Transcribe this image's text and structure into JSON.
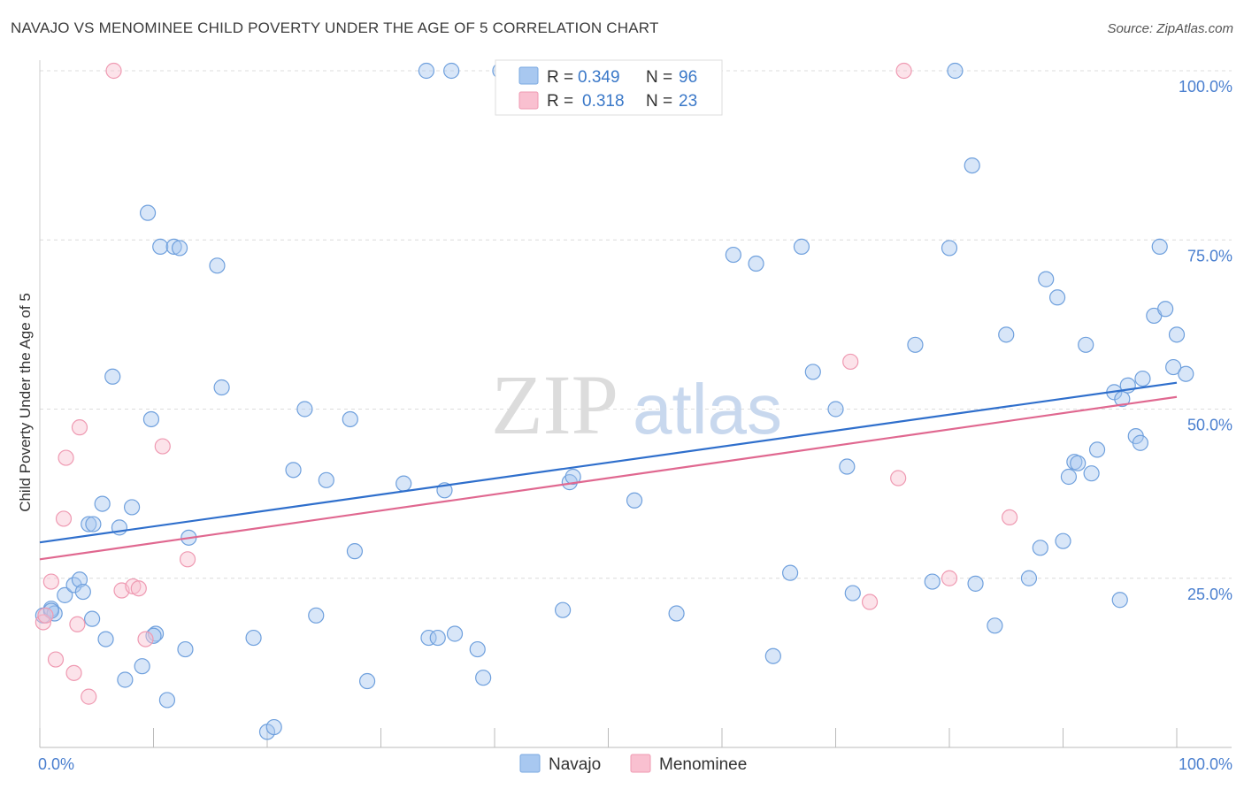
{
  "title": "NAVAJO VS MENOMINEE CHILD POVERTY UNDER THE AGE OF 5 CORRELATION CHART",
  "source": "Source: ZipAtlas.com",
  "watermark": {
    "zip": "ZIP",
    "atlas": "atlas"
  },
  "legend": {
    "rows": [
      {
        "r_label": "R =",
        "r_value": "0.349",
        "n_label": "N =",
        "n_value": "96",
        "color": "#a8c8f0",
        "stroke": "#7aa8e0"
      },
      {
        "r_label": "R =",
        "r_value": "0.318",
        "n_label": "N =",
        "n_value": "23",
        "color": "#f9c0d0",
        "stroke": "#ef9ab2"
      }
    ]
  },
  "bottom_legend": [
    "Navajo",
    "Menominee"
  ],
  "chart_data": {
    "type": "scatter",
    "xlabel": "",
    "ylabel": "Child Poverty Under the Age of 5",
    "xlim": [
      0,
      100
    ],
    "ylim": [
      0,
      100
    ],
    "x_tick_labels": [
      "0.0%",
      "100.0%"
    ],
    "y_tick_labels": [
      "25.0%",
      "50.0%",
      "75.0%",
      "100.0%"
    ],
    "y_ticks": [
      25,
      50,
      75,
      100
    ],
    "series": [
      {
        "name": "Navajo",
        "color": "#6fa0dd",
        "fill": "rgba(168,200,240,0.45)",
        "trend": [
          [
            0,
            30.3
          ],
          [
            100,
            53.9
          ]
        ],
        "trend_color": "#2f6fcc",
        "points": [
          [
            0.3,
            19.5
          ],
          [
            1.0,
            20.5
          ],
          [
            1.3,
            19.8
          ],
          [
            2.2,
            22.5
          ],
          [
            3.0,
            24.0
          ],
          [
            3.5,
            24.8
          ],
          [
            3.8,
            23.0
          ],
          [
            4.3,
            33.0
          ],
          [
            4.6,
            19.0
          ],
          [
            5.5,
            36.0
          ],
          [
            5.8,
            16.0
          ],
          [
            6.4,
            54.8
          ],
          [
            7.0,
            32.5
          ],
          [
            7.5,
            10.0
          ],
          [
            8.1,
            35.5
          ],
          [
            9.0,
            12.0
          ],
          [
            9.5,
            79.0
          ],
          [
            9.8,
            48.5
          ],
          [
            10.2,
            16.8
          ],
          [
            10.6,
            74.0
          ],
          [
            11.2,
            7.0
          ],
          [
            11.8,
            74.0
          ],
          [
            12.3,
            73.8
          ],
          [
            12.8,
            14.5
          ],
          [
            13.1,
            31.0
          ],
          [
            15.6,
            71.2
          ],
          [
            16.0,
            53.2
          ],
          [
            18.8,
            16.2
          ],
          [
            20.0,
            2.3
          ],
          [
            20.6,
            3.0
          ],
          [
            22.3,
            41.0
          ],
          [
            23.3,
            50.0
          ],
          [
            24.3,
            19.5
          ],
          [
            25.2,
            39.5
          ],
          [
            27.3,
            48.5
          ],
          [
            27.7,
            29.0
          ],
          [
            28.8,
            9.8
          ],
          [
            32.0,
            39.0
          ],
          [
            34.0,
            100.0
          ],
          [
            34.2,
            16.2
          ],
          [
            35.0,
            16.2
          ],
          [
            35.6,
            38.0
          ],
          [
            36.2,
            100.0
          ],
          [
            36.5,
            16.8
          ],
          [
            38.5,
            14.5
          ],
          [
            39.0,
            10.3
          ],
          [
            40.5,
            100.0
          ],
          [
            46.0,
            20.3
          ],
          [
            46.6,
            39.2
          ],
          [
            46.9,
            40.0
          ],
          [
            52.3,
            36.5
          ],
          [
            56.0,
            19.8
          ],
          [
            61.0,
            72.8
          ],
          [
            63.0,
            71.5
          ],
          [
            64.5,
            13.5
          ],
          [
            66.0,
            25.8
          ],
          [
            67.0,
            74.0
          ],
          [
            68.0,
            55.5
          ],
          [
            70.0,
            50.0
          ],
          [
            71.0,
            41.5
          ],
          [
            71.5,
            22.8
          ],
          [
            77.0,
            59.5
          ],
          [
            78.5,
            24.5
          ],
          [
            80.0,
            73.8
          ],
          [
            80.5,
            100.0
          ],
          [
            82.0,
            86.0
          ],
          [
            82.3,
            24.2
          ],
          [
            84.0,
            18.0
          ],
          [
            85.0,
            61.0
          ],
          [
            87.0,
            25.0
          ],
          [
            88.0,
            29.5
          ],
          [
            88.5,
            69.2
          ],
          [
            89.5,
            66.5
          ],
          [
            90.0,
            30.5
          ],
          [
            90.5,
            40.0
          ],
          [
            91.0,
            42.2
          ],
          [
            91.3,
            42.0
          ],
          [
            92.0,
            59.5
          ],
          [
            92.5,
            40.5
          ],
          [
            93.0,
            44.0
          ],
          [
            94.5,
            52.5
          ],
          [
            95.0,
            21.8
          ],
          [
            95.2,
            51.5
          ],
          [
            95.7,
            53.5
          ],
          [
            96.4,
            46.0
          ],
          [
            96.8,
            45.0
          ],
          [
            97.0,
            54.5
          ],
          [
            98.0,
            63.8
          ],
          [
            98.5,
            74.0
          ],
          [
            99.0,
            64.8
          ],
          [
            99.7,
            56.2
          ],
          [
            100.0,
            61.0
          ],
          [
            100.8,
            55.2
          ],
          [
            1.0,
            20.2
          ],
          [
            4.7,
            33.0
          ],
          [
            10.0,
            16.5
          ]
        ]
      },
      {
        "name": "Menominee",
        "color": "#ef9ab2",
        "fill": "rgba(249,192,208,0.45)",
        "trend": [
          [
            0,
            27.8
          ],
          [
            100,
            51.8
          ]
        ],
        "trend_color": "#e06890",
        "points": [
          [
            0.3,
            18.5
          ],
          [
            0.5,
            19.5
          ],
          [
            1.0,
            24.5
          ],
          [
            1.4,
            13.0
          ],
          [
            2.3,
            42.8
          ],
          [
            2.1,
            33.8
          ],
          [
            3.0,
            11.0
          ],
          [
            3.3,
            18.2
          ],
          [
            3.5,
            47.3
          ],
          [
            4.3,
            7.5
          ],
          [
            6.5,
            100.0
          ],
          [
            7.2,
            23.2
          ],
          [
            8.2,
            23.8
          ],
          [
            8.7,
            23.5
          ],
          [
            9.3,
            16.0
          ],
          [
            10.8,
            44.5
          ],
          [
            13.0,
            27.8
          ],
          [
            71.3,
            57.0
          ],
          [
            73.0,
            21.5
          ],
          [
            75.5,
            39.8
          ],
          [
            76.0,
            100.0
          ],
          [
            80.0,
            25.0
          ],
          [
            85.3,
            34.0
          ]
        ]
      }
    ]
  }
}
